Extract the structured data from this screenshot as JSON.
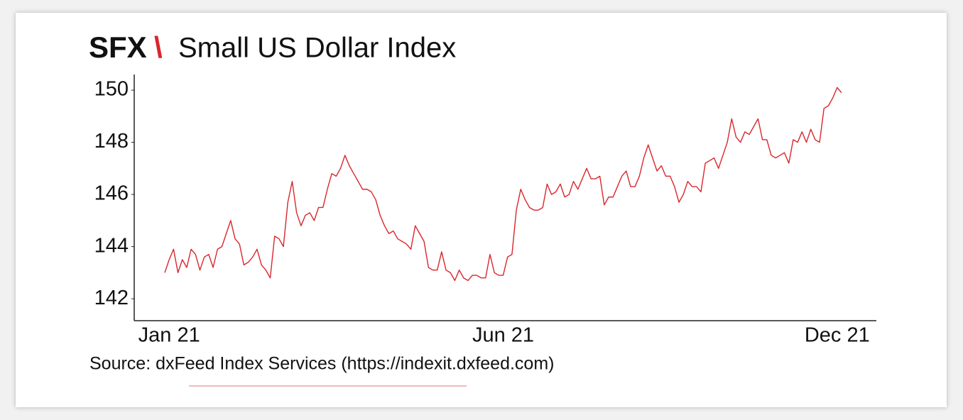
{
  "chart_data": {
    "type": "line",
    "title_code": "SFX",
    "title_separator": "\\",
    "title": "Small US Dollar Index",
    "source": "Source: dxFeed Index Services (https://indexit.dxfeed.com)",
    "categories": [
      null,
      "Jan 21",
      null,
      null,
      null,
      null,
      null,
      null,
      null,
      null,
      null,
      null,
      null,
      null,
      null,
      null,
      null,
      null,
      null,
      null,
      null,
      null,
      null,
      null,
      null,
      null,
      null,
      null,
      null,
      null,
      null,
      null,
      null,
      null,
      null,
      null,
      null,
      null,
      null,
      null,
      null,
      null,
      null,
      null,
      null,
      null,
      null,
      null,
      null,
      null,
      null,
      null,
      null,
      null,
      null,
      null,
      null,
      null,
      null,
      null,
      null,
      null,
      null,
      null,
      null,
      null,
      null,
      null,
      null,
      null,
      null,
      null,
      null,
      null,
      null,
      null,
      null,
      "Jun 21",
      null,
      null,
      null,
      null,
      null,
      null,
      null,
      null,
      null,
      null,
      null,
      null,
      null,
      null,
      null,
      null,
      null,
      null,
      null,
      null,
      null,
      null,
      null,
      null,
      null,
      null,
      null,
      null,
      null,
      null,
      null,
      null,
      null,
      null,
      null,
      null,
      null,
      null,
      null,
      null,
      null,
      null,
      null,
      null,
      null,
      null,
      null,
      null,
      null,
      null,
      null,
      null,
      null,
      null,
      null,
      null,
      null,
      null,
      null,
      null,
      null,
      null,
      null,
      null,
      null,
      null,
      null,
      null,
      null,
      null,
      null,
      null,
      null,
      null,
      null,
      "Dec 21",
      null
    ],
    "series": [
      {
        "color": "#d9262c",
        "values": [
          143.0,
          143.5,
          143.9,
          143.0,
          143.5,
          143.2,
          143.9,
          143.7,
          143.1,
          143.6,
          143.7,
          143.2,
          143.9,
          144.0,
          144.5,
          145.0,
          144.3,
          144.1,
          143.3,
          143.4,
          143.6,
          143.9,
          143.3,
          143.1,
          142.8,
          144.4,
          144.3,
          144.0,
          145.7,
          146.5,
          145.3,
          144.8,
          145.2,
          145.3,
          145.0,
          145.5,
          145.5,
          146.2,
          146.8,
          146.7,
          147.0,
          147.5,
          147.1,
          146.8,
          146.5,
          146.2,
          146.2,
          146.1,
          145.8,
          145.2,
          144.8,
          144.5,
          144.6,
          144.3,
          144.2,
          144.1,
          143.9,
          144.8,
          144.5,
          144.2,
          143.2,
          143.1,
          143.1,
          143.8,
          143.1,
          143.0,
          142.7,
          143.1,
          142.8,
          142.7,
          142.9,
          142.9,
          142.8,
          142.8,
          143.7,
          143.0,
          142.9,
          142.9,
          143.6,
          143.7,
          145.4,
          146.2,
          145.8,
          145.5,
          145.4,
          145.4,
          145.5,
          146.4,
          146.0,
          146.1,
          146.4,
          145.9,
          146.0,
          146.5,
          146.2,
          146.6,
          147.0,
          146.6,
          146.6,
          146.7,
          145.6,
          145.9,
          145.9,
          146.3,
          146.7,
          146.9,
          146.3,
          146.3,
          146.7,
          147.4,
          147.9,
          147.4,
          146.9,
          147.1,
          146.7,
          146.7,
          146.3,
          145.7,
          146.0,
          146.5,
          146.3,
          146.3,
          146.1,
          147.2,
          147.3,
          147.4,
          147.0,
          147.5,
          148.0,
          148.9,
          148.2,
          148.0,
          148.4,
          148.3,
          148.6,
          148.9,
          148.1,
          148.1,
          147.5,
          147.4,
          147.5,
          147.6,
          147.2,
          148.1,
          148.0,
          148.4,
          148.0,
          148.5,
          148.1,
          148.0,
          149.3,
          149.4,
          149.7,
          150.1,
          149.9
        ]
      }
    ],
    "ylim": [
      141.16,
      150.6
    ],
    "yticks": [
      142,
      144,
      146,
      148,
      150
    ],
    "grid": false
  }
}
